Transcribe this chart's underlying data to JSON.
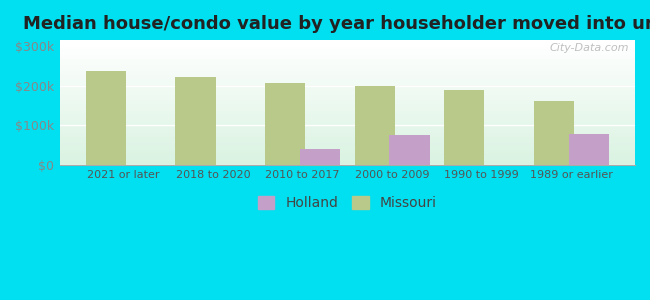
{
  "title": "Median house/condo value by year householder moved into unit",
  "categories": [
    "2021 or later",
    "2018 to 2020",
    "2010 to 2017",
    "2000 to 2009",
    "1990 to 1999",
    "1989 or earlier"
  ],
  "holland_values": [
    0,
    0,
    40000,
    75000,
    0,
    78000
  ],
  "missouri_values": [
    238000,
    222000,
    207000,
    200000,
    190000,
    162000
  ],
  "holland_color": "#c4a0c8",
  "missouri_color": "#b8c98a",
  "background_outer": "#00e0f0",
  "yticks": [
    0,
    100000,
    200000,
    300000
  ],
  "ytick_labels": [
    "$0",
    "$100k",
    "$200k",
    "$300k"
  ],
  "ylim": [
    0,
    315000
  ],
  "bar_width": 0.45,
  "title_fontsize": 13,
  "watermark": "City-Data.com"
}
